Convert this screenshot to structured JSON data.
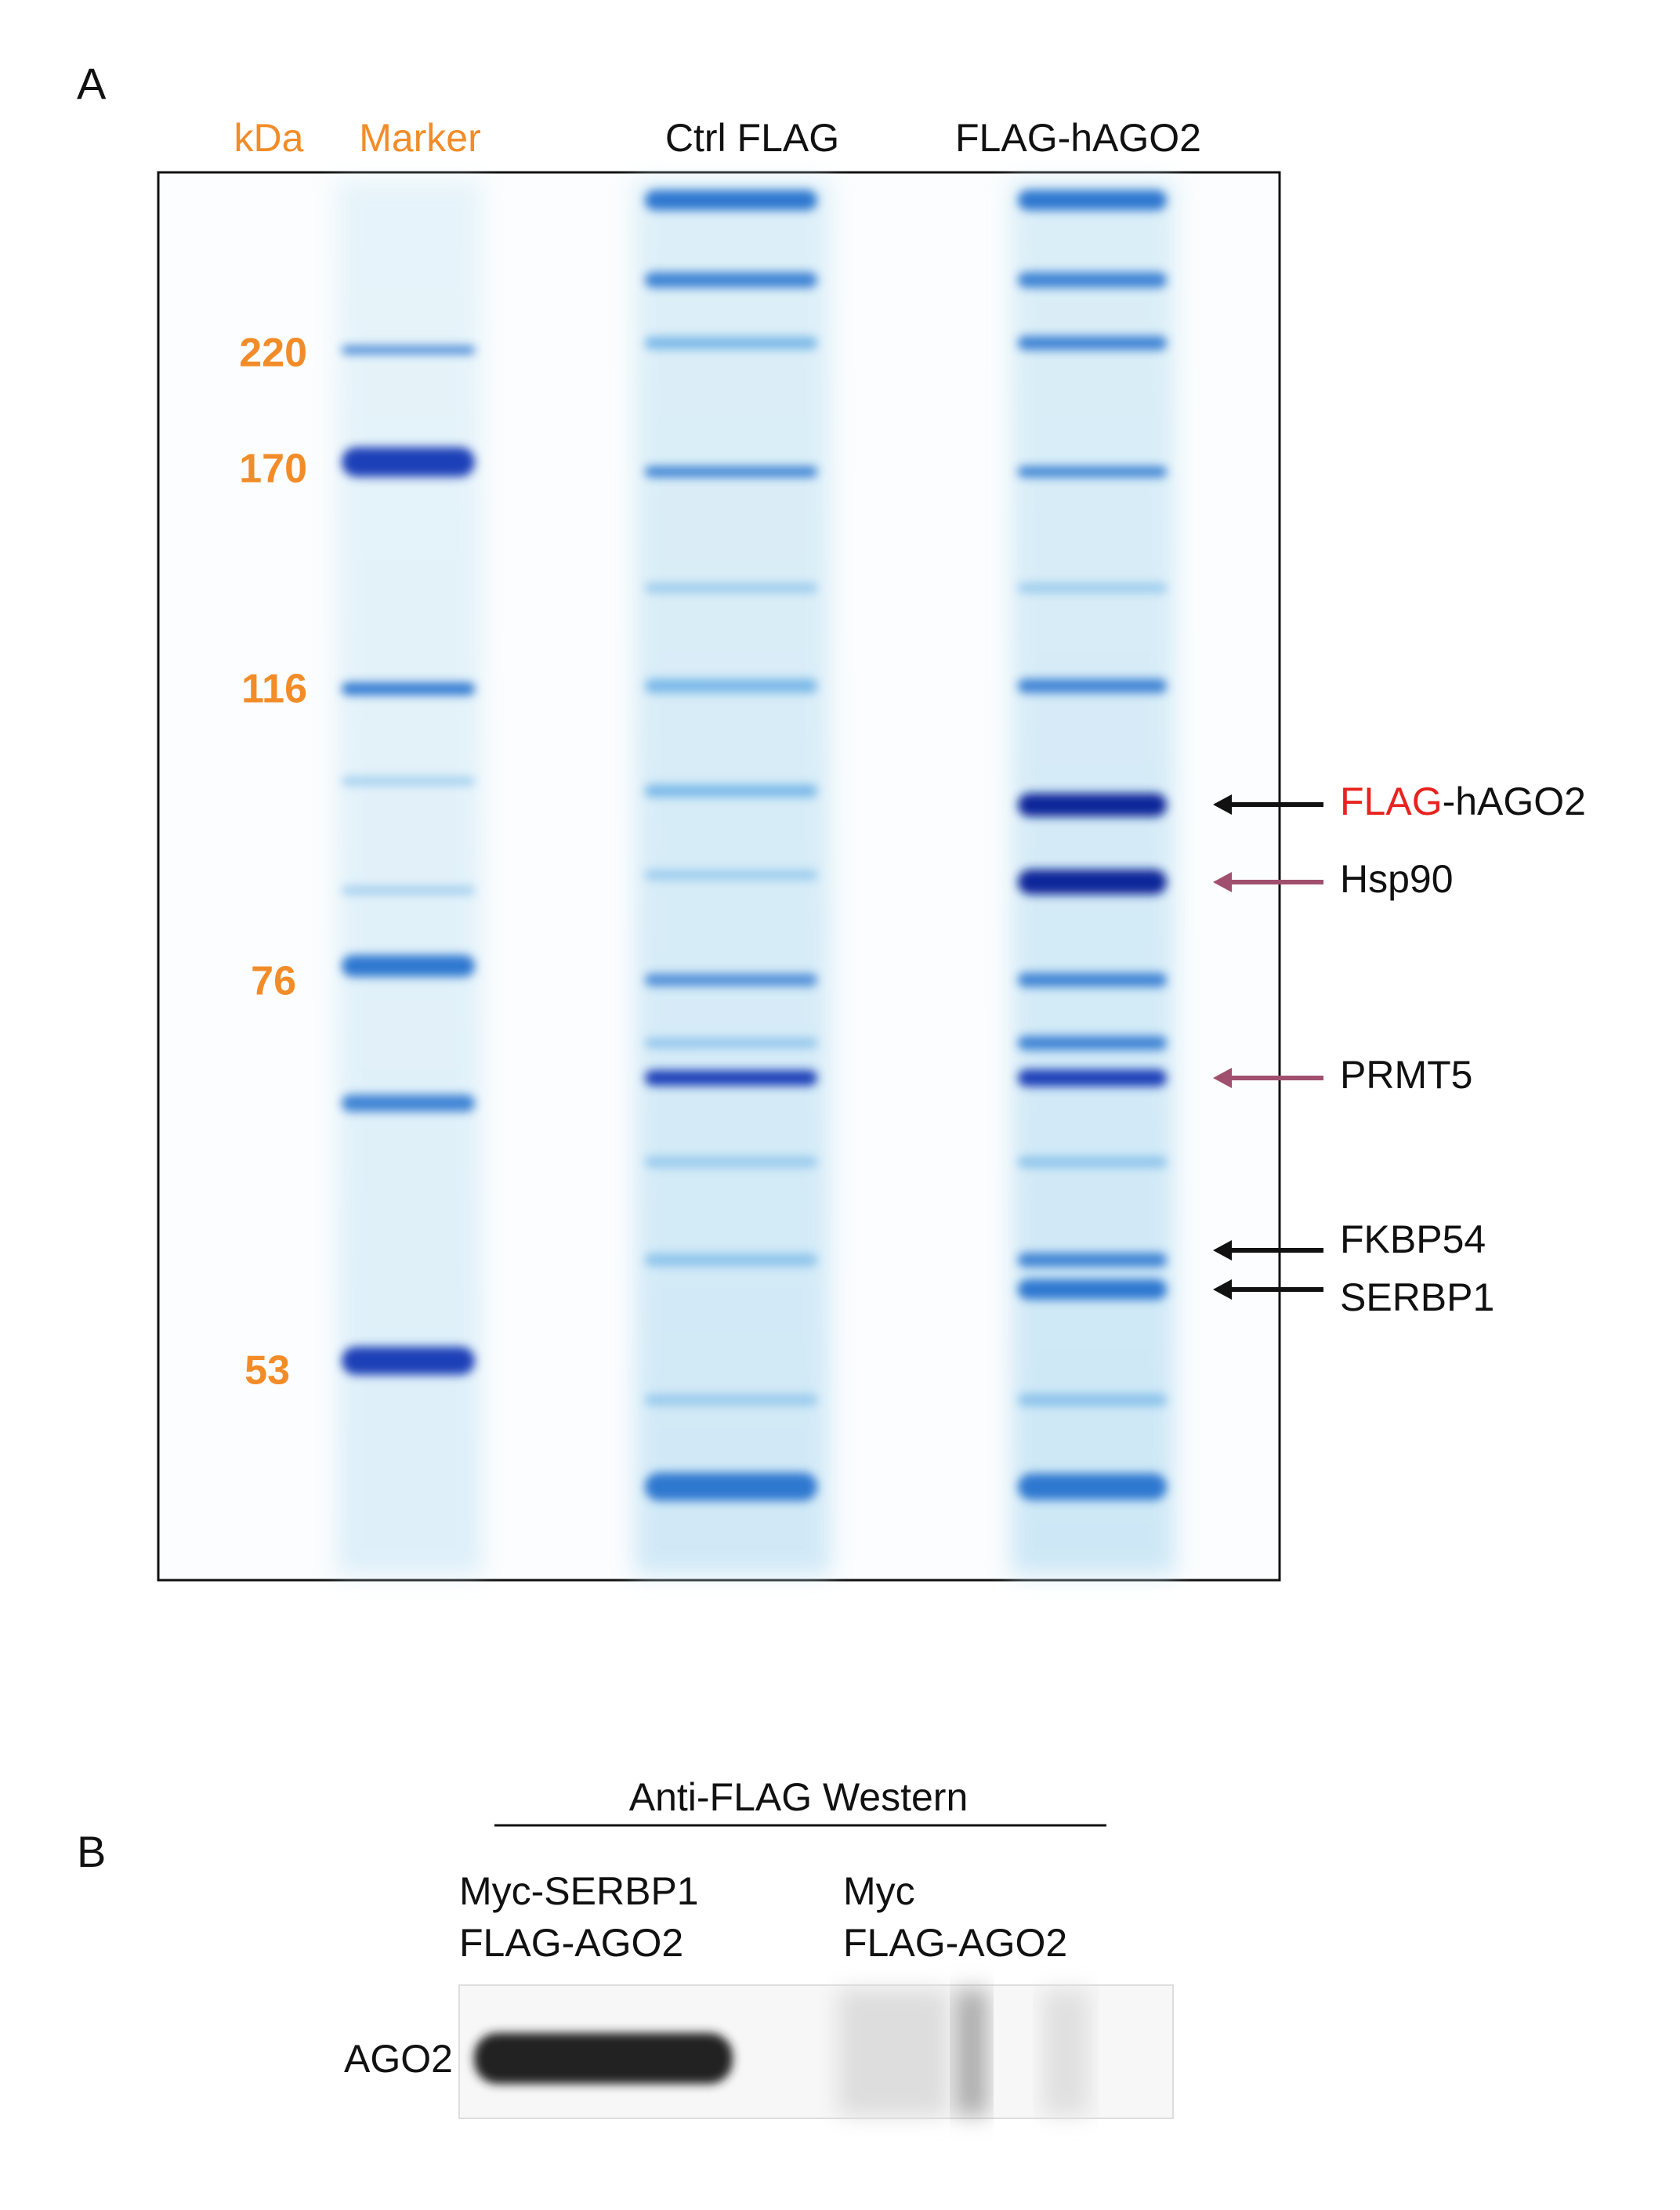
{
  "panel_a": {
    "label": "A",
    "header": {
      "unit": "kDa",
      "marker": "Marker",
      "lanes": [
        "Ctrl FLAG",
        "FLAG-hAGO2"
      ]
    },
    "markers": [
      "220",
      "170",
      "116",
      "76",
      "53"
    ],
    "bands": [
      {
        "tag": "FLAG",
        "rest": "-hAGO2"
      },
      {
        "label": "Hsp90"
      },
      {
        "label": "PRMT5"
      },
      {
        "label": "FKBP54"
      },
      {
        "label": "SERBP1"
      }
    ]
  },
  "panel_b": {
    "label": "B",
    "title": "Anti-FLAG Western",
    "lanes": [
      [
        "Myc-SERBP1",
        "FLAG-AGO2"
      ],
      [
        "Myc",
        "FLAG-AGO2"
      ]
    ],
    "row_label": "AGO2"
  }
}
